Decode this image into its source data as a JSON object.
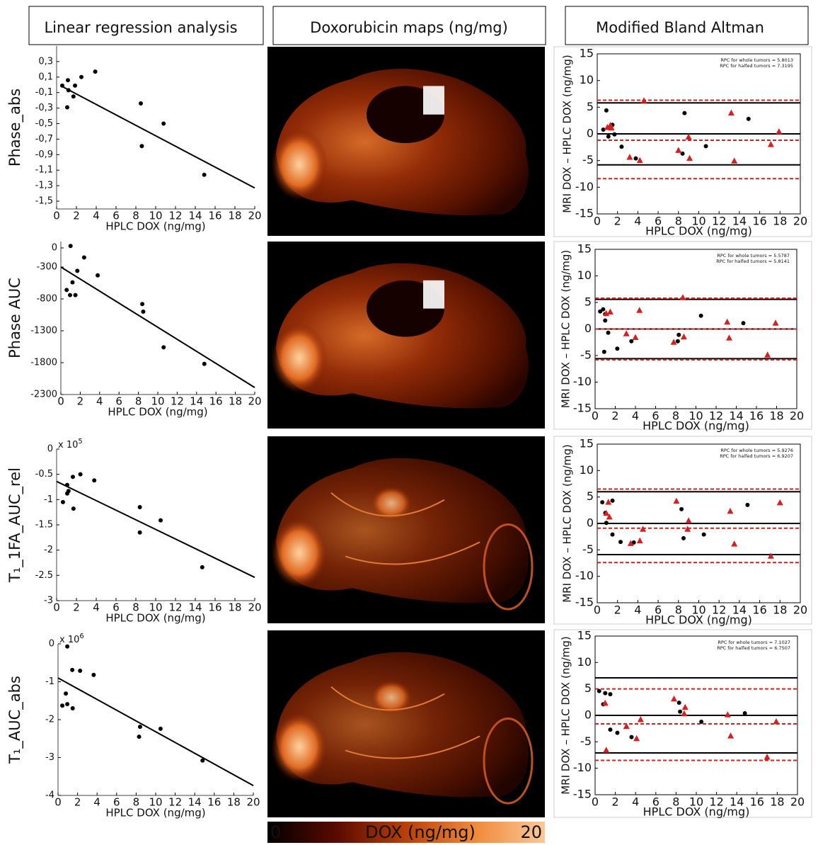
{
  "headers": [
    "Linear regression analysis",
    "Doxorubicin maps (ng/mg)",
    "Modified Bland Altman"
  ],
  "colorbar": {
    "ticks": [
      0,
      20
    ],
    "label": "DOX (ng/mg)",
    "colors": [
      "#000000",
      "#5a0a00",
      "#b8400a",
      "#f08a3a",
      "#fbc89a"
    ]
  },
  "chart_data": [
    {
      "type": "scatter",
      "y_label": "Phase_abs",
      "x_label": "HPLC DOX (ng/mg)",
      "xlim": [
        0,
        20
      ],
      "xticks": [
        0,
        2,
        4,
        6,
        8,
        10,
        12,
        14,
        16,
        18,
        20
      ],
      "ylim": [
        -1.6,
        0.5
      ],
      "yticks": [
        {
          "value": 0.3,
          "label": "0,3"
        },
        {
          "value": 0.1,
          "label": "0,1"
        },
        {
          "value": -0.1,
          "label": "-0,1"
        },
        {
          "value": -0.3,
          "label": "-0,3"
        },
        {
          "value": -0.5,
          "label": "-0,5"
        },
        {
          "value": -0.7,
          "label": "-0,7"
        },
        {
          "value": -0.9,
          "label": "-0,9"
        },
        {
          "value": -1.1,
          "label": "-1,1"
        },
        {
          "value": -1.3,
          "label": "-1,3"
        },
        {
          "value": -1.5,
          "label": "-1,5"
        }
      ],
      "series": [
        {
          "type": "scatter",
          "marker": "circle",
          "color": "#000000",
          "x": [
            0.57,
            1.14,
            1.2,
            1.7,
            1.86,
            1.07,
            2.5,
            3.9,
            8.5,
            8.6,
            10.8,
            14.9
          ],
          "values": [
            -0.01,
            0.06,
            -0.07,
            -0.15,
            -0.01,
            -0.29,
            0.1,
            0.17,
            -0.24,
            -0.79,
            -0.5,
            -1.16
          ]
        },
        {
          "type": "line",
          "color": "#000000",
          "x": [
            0.4,
            20
          ],
          "values": [
            -0.01,
            -1.33
          ]
        }
      ]
    },
    {
      "type": "scatter",
      "y_label": "Phase AUC",
      "x_label": "HPLC DOX (ng/mg)",
      "xlim": [
        0,
        20
      ],
      "xticks": [
        0,
        2,
        4,
        6,
        8,
        10,
        12,
        14,
        16,
        18,
        20
      ],
      "ylim": [
        -2300,
        100
      ],
      "yticks": [
        0,
        -300,
        -800,
        -1300,
        -1800,
        -2300
      ],
      "series": [
        {
          "type": "scatter",
          "marker": "circle",
          "color": "#000000",
          "x": [
            1.0,
            2.4,
            1.7,
            3.8,
            1.2,
            0.6,
            0.95,
            1.5,
            8.4,
            8.5,
            10.6,
            14.8
          ],
          "values": [
            30,
            -150,
            -360,
            -430,
            -540,
            -660,
            -740,
            -740,
            -880,
            -1000,
            -1560,
            -1820
          ]
        },
        {
          "type": "line",
          "color": "#000000",
          "x": [
            0,
            20
          ],
          "values": [
            -300,
            -2190
          ]
        }
      ]
    },
    {
      "type": "scatter",
      "y_label": "T₁_1FA_AUC_rel",
      "x_label": "HPLC DOX (ng/mg)",
      "y_scale": {
        "text": "x 10",
        "sup": "5"
      },
      "xlim": [
        0,
        20
      ],
      "xticks": [
        0,
        2,
        4,
        6,
        8,
        10,
        12,
        14,
        16,
        18,
        20
      ],
      "ylim": [
        -3,
        0
      ],
      "yticks": [
        0,
        -0.5,
        -1,
        -1.5,
        -2,
        -2.5,
        -3
      ],
      "series": [
        {
          "type": "scatter",
          "marker": "circle",
          "color": "#000000",
          "x": [
            0.64,
            1.07,
            1.2,
            1.07,
            1.64,
            2.4,
            3.8,
            1.7,
            8.4,
            8.4,
            10.5,
            14.7
          ],
          "values": [
            -1.05,
            -0.71,
            -0.83,
            -0.88,
            -0.55,
            -0.5,
            -0.62,
            -1.18,
            -1.15,
            -1.65,
            -1.41,
            -2.34
          ]
        },
        {
          "type": "line",
          "color": "#000000",
          "x": [
            0,
            20
          ],
          "values": [
            -0.64,
            -2.54
          ]
        }
      ]
    },
    {
      "type": "scatter",
      "y_label": "T₁_AUC_abs",
      "x_label": "HPLC DOX (ng/mg)",
      "y_scale": {
        "text": "x 10",
        "sup": "6"
      },
      "xlim": [
        0,
        20
      ],
      "xticks": [
        0,
        2,
        4,
        6,
        8,
        10,
        12,
        14,
        16,
        18,
        20
      ],
      "ylim": [
        -4,
        0
      ],
      "yticks": [
        0,
        -1,
        -2,
        -3,
        -4
      ],
      "series": [
        {
          "type": "scatter",
          "marker": "circle",
          "color": "#000000",
          "x": [
            0.95,
            1.46,
            2.26,
            3.65,
            0.8,
            0.44,
            0.95,
            1.5,
            8.4,
            8.3,
            10.5,
            14.8
          ],
          "values": [
            -0.07,
            -0.69,
            -0.71,
            -0.82,
            -1.31,
            -1.63,
            -1.59,
            -1.7,
            -2.19,
            -2.45,
            -2.24,
            -3.08
          ]
        },
        {
          "type": "line",
          "color": "#000000",
          "x": [
            0,
            20
          ],
          "values": [
            -0.9,
            -3.74
          ]
        }
      ]
    },
    {
      "type": "scatter",
      "y_label": "MRI DOX – HPLC DOX (ng/mg)",
      "x_label": "HPLC DOX (ng/mg)",
      "annotations": [
        "RPC for whole tumors = 5.8013",
        "RPC for halfed tumors = 7.3195"
      ],
      "xlim": [
        0,
        20
      ],
      "xticks": [
        0,
        2,
        4,
        6,
        8,
        10,
        12,
        14,
        16,
        18,
        20
      ],
      "ylim": [
        -15,
        15
      ],
      "yticks": [
        -15,
        -10,
        -5,
        0,
        5,
        10,
        15
      ],
      "hlines": [
        {
          "y": 5.8,
          "color": "#000000",
          "dashed": false
        },
        {
          "y": 0,
          "color": "#000000",
          "dashed": false
        },
        {
          "y": -5.8,
          "color": "#000000",
          "dashed": false
        },
        {
          "y": 6.3,
          "color": "#d62020",
          "dashed": true
        },
        {
          "y": -1.2,
          "color": "#d62020",
          "dashed": true
        },
        {
          "y": -8.4,
          "color": "#d62020",
          "dashed": true
        }
      ],
      "series": [
        {
          "type": "scatter",
          "marker": "circle",
          "color": "#000000",
          "x": [
            0.6,
            0.9,
            1.1,
            1.5,
            1.7,
            2.4,
            3.8,
            8.4,
            8.6,
            10.7,
            14.9
          ],
          "values": [
            0.8,
            4.4,
            -0.5,
            1.7,
            -0.1,
            -2.4,
            -4.6,
            -3.7,
            3.9,
            -2.3,
            2.8
          ]
        },
        {
          "type": "scatter",
          "marker": "triangle",
          "color": "#d62020",
          "x": [
            1.0,
            1.3,
            1.4,
            3.2,
            4.2,
            4.6,
            8.0,
            9.0,
            9.1,
            13.2,
            13.5,
            17.1,
            17.9
          ],
          "values": [
            1.2,
            1.6,
            1.1,
            -4.4,
            -5.0,
            6.2,
            -3.1,
            -0.6,
            -4.6,
            3.9,
            -5.1,
            -2.0,
            0.4
          ]
        }
      ]
    },
    {
      "type": "scatter",
      "y_label": "MRI DOX – HPLC DOX (ng/mg)",
      "x_label": "HPLC DOX (ng/mg)",
      "annotations": [
        "RPC for whole tumors = 5.5787",
        "RPC for halfed tumors = 5.8141"
      ],
      "xlim": [
        0,
        20
      ],
      "xticks": [
        0,
        2,
        4,
        6,
        8,
        10,
        12,
        14,
        16,
        18,
        20
      ],
      "ylim": [
        -15,
        15
      ],
      "yticks": [
        -15,
        -10,
        -5,
        0,
        5,
        10,
        15
      ],
      "hlines": [
        {
          "y": 5.58,
          "color": "#000000",
          "dashed": false
        },
        {
          "y": 0,
          "color": "#000000",
          "dashed": false
        },
        {
          "y": -5.58,
          "color": "#000000",
          "dashed": false
        },
        {
          "y": 5.8,
          "color": "#d62020",
          "dashed": true
        },
        {
          "y": 0,
          "color": "#d62020",
          "dashed": true
        },
        {
          "y": -5.8,
          "color": "#d62020",
          "dashed": true
        }
      ],
      "series": [
        {
          "type": "scatter",
          "marker": "circle",
          "color": "#000000",
          "x": [
            0.5,
            0.8,
            1.0,
            1.0,
            1.3,
            0.9,
            2.2,
            3.6,
            8.3,
            8.2,
            10.5,
            14.7
          ],
          "values": [
            3.3,
            3.7,
            1.6,
            2.8,
            -0.7,
            -4.3,
            -3.7,
            -2.3,
            -1.1,
            -2.3,
            2.5,
            1.1
          ]
        },
        {
          "type": "scatter",
          "marker": "triangle",
          "color": "#d62020",
          "x": [
            1.1,
            1.5,
            3.1,
            4.0,
            4.4,
            7.8,
            8.8,
            8.7,
            13.1,
            13.3,
            17.1,
            17.9
          ],
          "values": [
            2.9,
            3.2,
            -0.9,
            -1.6,
            3.5,
            -2.5,
            -1.5,
            5.9,
            1.3,
            -1.7,
            -4.9,
            1.1
          ]
        }
      ]
    },
    {
      "type": "scatter",
      "y_label": "MRI DOX – HPLC DOX (ng/mg)",
      "x_label": "HPLC DOX (ng/mg)",
      "annotations": [
        "RPC for whole tumors = 5.9276",
        "RPC for halfed tumors = 6.9207"
      ],
      "xlim": [
        0,
        20
      ],
      "xticks": [
        0,
        2,
        4,
        6,
        8,
        10,
        12,
        14,
        16,
        18,
        20
      ],
      "ylim": [
        -15,
        15
      ],
      "yticks": [
        -15,
        -10,
        -5,
        0,
        5,
        10,
        15
      ],
      "hlines": [
        {
          "y": 6.0,
          "color": "#000000",
          "dashed": false
        },
        {
          "y": 0,
          "color": "#000000",
          "dashed": false
        },
        {
          "y": -5.9,
          "color": "#000000",
          "dashed": false
        },
        {
          "y": 6.5,
          "color": "#d62020",
          "dashed": true
        },
        {
          "y": -0.9,
          "color": "#d62020",
          "dashed": true
        },
        {
          "y": -7.4,
          "color": "#d62020",
          "dashed": true
        }
      ],
      "series": [
        {
          "type": "scatter",
          "marker": "circle",
          "color": "#000000",
          "x": [
            0.5,
            0.8,
            1.5,
            0.9,
            1.5,
            2.3,
            3.6,
            8.3,
            8.5,
            10.5,
            14.8
          ],
          "values": [
            4.0,
            2.0,
            4.3,
            0.1,
            -2.1,
            -3.5,
            -3.6,
            2.7,
            -2.8,
            -2.1,
            3.5
          ]
        },
        {
          "type": "scatter",
          "marker": "triangle",
          "color": "#d62020",
          "x": [
            1.1,
            0.9,
            1.2,
            3.3,
            4.2,
            4.5,
            7.8,
            8.9,
            9.0,
            13.1,
            13.5,
            17.1,
            18.0
          ],
          "values": [
            4.0,
            1.9,
            1.2,
            -3.8,
            -3.3,
            -1.1,
            4.2,
            -1.1,
            0.5,
            2.3,
            -3.9,
            -6.2,
            3.9
          ]
        }
      ]
    },
    {
      "type": "scatter",
      "y_label": "MRI DOX – HPLC DOX (ng/mg)",
      "x_label": "HPLC DOX (ng/mg)",
      "annotations": [
        "RPC for whole tumors = 7.1027",
        "RPC for halfed tumors = 6.7507"
      ],
      "xlim": [
        0,
        20
      ],
      "xticks": [
        0,
        2,
        4,
        6,
        8,
        10,
        12,
        14,
        16,
        18,
        20
      ],
      "ylim": [
        -15,
        15
      ],
      "yticks": [
        -15,
        -10,
        -5,
        0,
        5,
        10,
        15
      ],
      "hlines": [
        {
          "y": 7.1,
          "color": "#000000",
          "dashed": false
        },
        {
          "y": 0,
          "color": "#000000",
          "dashed": false
        },
        {
          "y": -7.1,
          "color": "#000000",
          "dashed": false
        },
        {
          "y": 5.0,
          "color": "#d62020",
          "dashed": true
        },
        {
          "y": -1.6,
          "color": "#d62020",
          "dashed": true
        },
        {
          "y": -8.5,
          "color": "#d62020",
          "dashed": true
        }
      ],
      "series": [
        {
          "type": "scatter",
          "marker": "circle",
          "color": "#000000",
          "x": [
            0.4,
            1.0,
            1.5,
            0.8,
            1.5,
            2.2,
            3.6,
            8.3,
            8.4,
            10.5,
            14.8
          ],
          "values": [
            4.6,
            4.2,
            4.0,
            2.1,
            -2.7,
            -3.3,
            -4.1,
            2.4,
            0.7,
            -1.2,
            0.4
          ]
        },
        {
          "type": "scatter",
          "marker": "triangle",
          "color": "#d62020",
          "x": [
            1.0,
            1.1,
            3.1,
            4.1,
            4.5,
            7.8,
            8.9,
            8.8,
            13.1,
            13.4,
            17.0,
            17.9
          ],
          "values": [
            2.3,
            -6.6,
            -2.1,
            -4.4,
            -0.8,
            3.1,
            1.5,
            0.3,
            0.1,
            -3.9,
            -7.9,
            -1.2
          ]
        }
      ]
    }
  ]
}
